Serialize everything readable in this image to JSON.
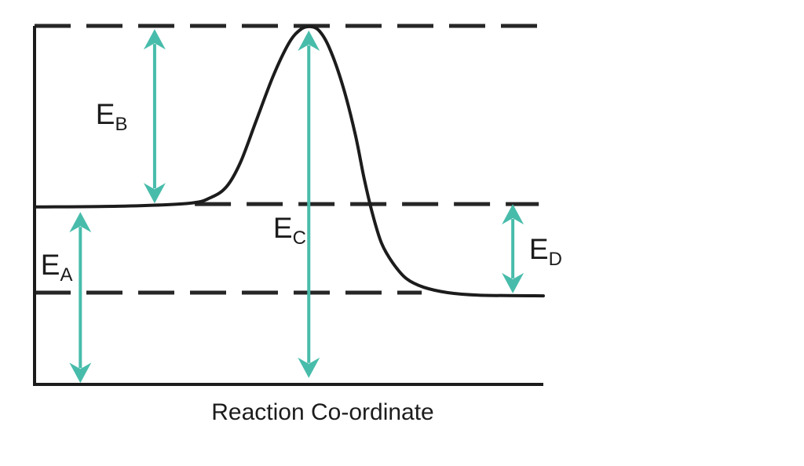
{
  "chart_data": {
    "type": "line",
    "title": "",
    "xlabel": "Reaction Co-ordinate",
    "ylabel": "",
    "grid": false,
    "legend": false,
    "axis_range": {
      "x": [
        0,
        1
      ],
      "y": [
        0,
        1
      ]
    },
    "description": "Energy profile along the reaction co-ordinate: flat reactant level rises over a transition-state peak then falls to a lower product level. Teal double-headed arrows mark energies EA (baseline to reactant level), EB (reactant level to peak), EC (baseline to peak) and ED (product level to reactant level).",
    "curve": {
      "name": "energy-profile",
      "points": [
        [
          0.0,
          0.495
        ],
        [
          0.164,
          0.497
        ],
        [
          0.302,
          0.505
        ],
        [
          0.346,
          0.521
        ],
        [
          0.377,
          0.551
        ],
        [
          0.404,
          0.617
        ],
        [
          0.435,
          0.733
        ],
        [
          0.469,
          0.86
        ],
        [
          0.5,
          0.952
        ],
        [
          0.522,
          0.989
        ],
        [
          0.54,
          0.998
        ],
        [
          0.559,
          0.987
        ],
        [
          0.58,
          0.937
        ],
        [
          0.606,
          0.832
        ],
        [
          0.63,
          0.7
        ],
        [
          0.648,
          0.573
        ],
        [
          0.664,
          0.477
        ],
        [
          0.682,
          0.394
        ],
        [
          0.704,
          0.339
        ],
        [
          0.731,
          0.295
        ],
        [
          0.765,
          0.271
        ],
        [
          0.812,
          0.256
        ],
        [
          0.873,
          0.249
        ],
        [
          1.0,
          0.247
        ]
      ]
    },
    "levels": [
      {
        "name": "peak-level",
        "value": 1.0,
        "x_start": 0.0,
        "x_end": 1.0,
        "style": "dashed"
      },
      {
        "name": "reactant-level",
        "value": 0.503,
        "x_start": 0.315,
        "x_end": 0.991,
        "style": "dashed"
      },
      {
        "name": "product-level",
        "value": 0.256,
        "x_start": 0.0,
        "x_end": 0.761,
        "style": "dashed"
      }
    ],
    "arrows": [
      {
        "id": "EA",
        "base": "E",
        "sub": "A",
        "x": 0.09,
        "from": 0.004,
        "to": 0.481,
        "label_x": 0.012,
        "label_y": 0.306
      },
      {
        "id": "EB",
        "base": "E",
        "sub": "B",
        "x": 0.236,
        "from": 0.505,
        "to": 0.991,
        "label_x": 0.12,
        "label_y": 0.727
      },
      {
        "id": "EC",
        "base": "E",
        "sub": "C",
        "x": 0.539,
        "from": 0.018,
        "to": 0.987,
        "label_x": 0.469,
        "label_y": 0.409
      },
      {
        "id": "ED",
        "base": "E",
        "sub": "D",
        "x": 0.94,
        "from": 0.254,
        "to": 0.503,
        "label_x": 0.972,
        "label_y": 0.35
      }
    ]
  },
  "style": {
    "background": "#ffffff",
    "line_color": "#1c1c1c",
    "dash_color": "#262626",
    "arrow_color": "#48bcab",
    "text_color": "#1c1c1c"
  }
}
